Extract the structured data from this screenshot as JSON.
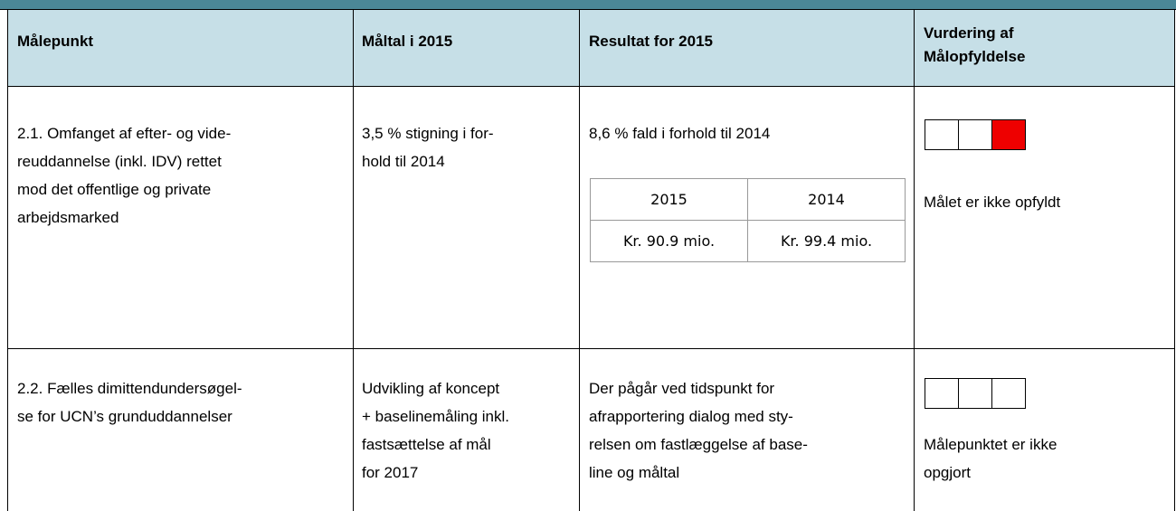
{
  "table": {
    "header": [
      [
        "Målepunkt"
      ],
      [
        "Måltal i 2015"
      ],
      [
        "Resultat for 2015"
      ],
      [
        "Vurdering af",
        "Målopfyldelse"
      ]
    ],
    "rows": [
      {
        "cells": [
          [
            "2.1. Omfanget af efter- og vide-",
            "reuddannelse (inkl. IDV) rettet",
            "mod det offentlige og private",
            "arbejdsmarked"
          ],
          [
            "3,5 % stigning i for-",
            "hold til 2014"
          ],
          [
            "8,6 % fald i forhold til 2014"
          ],
          [
            "Målet er ikke opfyldt"
          ]
        ],
        "result_table": [
          [
            "2015",
            "2014"
          ],
          [
            "Kr. 90.9 mio.",
            "Kr. 99.4 mio."
          ]
        ]
      },
      {
        "cells": [
          [
            "2.2. Fælles dimittendundersøgel-",
            "se for UCN’s grunduddannelser"
          ],
          [
            "Udvikling af koncept",
            "+ baselinemåling inkl.",
            "fastsættelse af mål",
            "for 2017"
          ],
          [
            "Der pågår ved tidspunkt for",
            "afrapportering dialog med sty-",
            "relsen om fastlæggelse af base-",
            "line og måltal"
          ],
          [
            "Målepunktet er ikke",
            "opgjort"
          ]
        ]
      }
    ]
  }
}
